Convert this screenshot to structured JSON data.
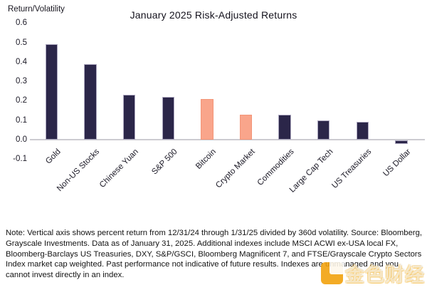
{
  "header": {
    "title": "January 2025 Risk-Adjusted Returns",
    "y_axis_label": "Return/Volatility"
  },
  "chart_data": {
    "type": "bar",
    "title": "January 2025 Risk-Adjusted Returns",
    "xlabel": "",
    "ylabel": "Return/Volatility",
    "categories": [
      "Gold",
      "Non-US Stocks",
      "Chinese Yuan",
      "S&P 500",
      "Bitcoin",
      "Crypto Market",
      "Commodities",
      "Large Cap Tech",
      "US Treasuries",
      "US Dollar"
    ],
    "values": [
      0.49,
      0.39,
      0.23,
      0.22,
      0.21,
      0.13,
      0.13,
      0.1,
      0.09,
      -0.02
    ],
    "ylim": [
      -0.1,
      0.6
    ],
    "ytick_labels": [
      "0.6",
      "0.5",
      "0.4",
      "0.3",
      "0.2",
      "0.1",
      "0.0",
      "-0.1"
    ],
    "grid": false,
    "legend_position": "none",
    "colors": {
      "primary_bar": "#2B2649",
      "highlight_bar": "#F9A58B",
      "highlight_categories": [
        "Bitcoin",
        "Crypto Market"
      ],
      "zero_line": "#CCCBD1"
    },
    "highlight_indices": [
      4,
      5
    ]
  },
  "note": {
    "text": "Note: Vertical axis shows percent return from 12/31/24 through 1/31/25 divided by 360d volatility. Source: Bloomberg, Grayscale Investments. Data as of January  31, 2025. Additional indexes include MSCI ACWI ex-USA local FX, Bloomberg-Barclays US Treasuries, DXY, S&P/GSCI, Bloomberg Magnificent 7, and FTSE/Grayscale Crypto Sectors Index market cap weighted. Past performance not indicative of future results. Indexes are unmanaged and you cannot invest directly in an index."
  },
  "watermark": {
    "text": "金色财经",
    "icon_color": "#F2A007"
  }
}
